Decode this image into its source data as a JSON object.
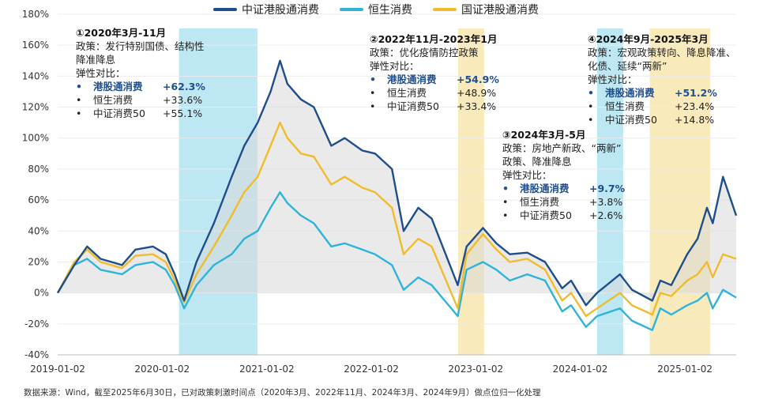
{
  "chart_data": {
    "type": "line",
    "title": "",
    "xlabel": "",
    "ylabel": "",
    "ylim": [
      -40,
      180
    ],
    "y_ticks": [
      -40,
      -20,
      0,
      20,
      40,
      60,
      80,
      100,
      120,
      140,
      160,
      180
    ],
    "y_tick_labels": [
      "-40%",
      "-20%",
      "0%",
      "20%",
      "40%",
      "60%",
      "80%",
      "100%",
      "120%",
      "140%",
      "160%",
      "180%"
    ],
    "xlim": [
      "2019-01-02",
      "2025-06-30"
    ],
    "x_ticks": [
      "2019-01-02",
      "2020-01-02",
      "2021-01-02",
      "2022-01-02",
      "2023-01-02",
      "2024-01-02",
      "2025-01-02"
    ],
    "legend_position": "top-center",
    "series": [
      {
        "name": "中证港股通消费",
        "color": "#1f4e8c",
        "x": [
          "2019-01-02",
          "2019-03-01",
          "2019-04-15",
          "2019-06-01",
          "2019-08-15",
          "2019-10-01",
          "2019-12-01",
          "2020-01-15",
          "2020-02-15",
          "2020-03-19",
          "2020-05-01",
          "2020-07-01",
          "2020-09-01",
          "2020-10-15",
          "2020-12-01",
          "2021-01-15",
          "2021-02-17",
          "2021-03-15",
          "2021-05-01",
          "2021-06-15",
          "2021-08-15",
          "2021-10-01",
          "2021-12-01",
          "2022-01-15",
          "2022-03-15",
          "2022-04-25",
          "2022-06-15",
          "2022-08-01",
          "2022-10-31",
          "2022-12-01",
          "2023-01-27",
          "2023-03-15",
          "2023-05-01",
          "2023-07-01",
          "2023-09-01",
          "2023-10-31",
          "2023-12-01",
          "2024-01-22",
          "2024-03-01",
          "2024-05-20",
          "2024-07-01",
          "2024-09-10",
          "2024-10-08",
          "2024-11-15",
          "2025-01-10",
          "2025-02-15",
          "2025-03-20",
          "2025-04-09",
          "2025-05-15",
          "2025-06-30"
        ],
        "values": [
          0,
          18,
          30,
          22,
          18,
          28,
          30,
          25,
          12,
          -5,
          20,
          45,
          75,
          95,
          110,
          130,
          150,
          135,
          125,
          120,
          95,
          100,
          92,
          90,
          80,
          40,
          55,
          48,
          5,
          30,
          42,
          32,
          25,
          26,
          20,
          3,
          8,
          -8,
          0,
          12,
          2,
          -5,
          8,
          5,
          25,
          35,
          55,
          45,
          75,
          50
        ]
      },
      {
        "name": "恒生消费",
        "color": "#2eb4da",
        "x": [
          "2019-01-02",
          "2019-03-01",
          "2019-04-15",
          "2019-06-01",
          "2019-08-15",
          "2019-10-01",
          "2019-12-01",
          "2020-01-15",
          "2020-02-15",
          "2020-03-19",
          "2020-05-01",
          "2020-07-01",
          "2020-09-01",
          "2020-10-15",
          "2020-12-01",
          "2021-01-15",
          "2021-02-17",
          "2021-03-15",
          "2021-05-01",
          "2021-06-15",
          "2021-08-15",
          "2021-10-01",
          "2021-12-01",
          "2022-01-15",
          "2022-03-15",
          "2022-04-25",
          "2022-06-15",
          "2022-08-01",
          "2022-10-31",
          "2022-12-01",
          "2023-01-27",
          "2023-03-15",
          "2023-05-01",
          "2023-07-01",
          "2023-09-01",
          "2023-10-31",
          "2023-12-01",
          "2024-01-22",
          "2024-03-01",
          "2024-05-20",
          "2024-07-01",
          "2024-09-10",
          "2024-10-08",
          "2024-11-15",
          "2025-01-10",
          "2025-02-15",
          "2025-03-20",
          "2025-04-09",
          "2025-05-15",
          "2025-06-30"
        ],
        "values": [
          0,
          18,
          22,
          15,
          12,
          18,
          20,
          15,
          5,
          -10,
          5,
          18,
          25,
          35,
          40,
          55,
          65,
          58,
          50,
          45,
          30,
          32,
          28,
          25,
          18,
          2,
          10,
          5,
          -15,
          15,
          20,
          15,
          8,
          12,
          8,
          -12,
          -8,
          -22,
          -15,
          -10,
          -18,
          -24,
          -10,
          -14,
          -8,
          -5,
          0,
          -10,
          2,
          -3
        ]
      },
      {
        "name": "国证港股通消费",
        "color": "#f0bc2b",
        "x": [
          "2019-01-02",
          "2019-03-01",
          "2019-04-15",
          "2019-06-01",
          "2019-08-15",
          "2019-10-01",
          "2019-12-01",
          "2020-01-15",
          "2020-02-15",
          "2020-03-19",
          "2020-05-01",
          "2020-07-01",
          "2020-09-01",
          "2020-10-15",
          "2020-12-01",
          "2021-01-15",
          "2021-02-17",
          "2021-03-15",
          "2021-05-01",
          "2021-06-15",
          "2021-08-15",
          "2021-10-01",
          "2021-12-01",
          "2022-01-15",
          "2022-03-15",
          "2022-04-25",
          "2022-06-15",
          "2022-08-01",
          "2022-10-31",
          "2022-12-01",
          "2023-01-27",
          "2023-03-15",
          "2023-05-01",
          "2023-07-01",
          "2023-09-01",
          "2023-10-31",
          "2023-12-01",
          "2024-01-22",
          "2024-03-01",
          "2024-05-20",
          "2024-07-01",
          "2024-09-10",
          "2024-10-08",
          "2024-11-15",
          "2025-01-10",
          "2025-02-15",
          "2025-03-20",
          "2025-04-09",
          "2025-05-15",
          "2025-06-30"
        ],
        "values": [
          0,
          20,
          28,
          20,
          16,
          24,
          25,
          20,
          8,
          -6,
          12,
          30,
          50,
          65,
          75,
          95,
          110,
          100,
          90,
          88,
          70,
          75,
          68,
          65,
          55,
          25,
          35,
          30,
          -10,
          25,
          38,
          28,
          20,
          22,
          15,
          -5,
          0,
          -15,
          -10,
          0,
          -8,
          -14,
          0,
          -2,
          8,
          12,
          20,
          10,
          25,
          22
        ]
      }
    ],
    "shaded_periods": [
      {
        "label": "①",
        "start": "2020-03-01",
        "end": "2020-11-30",
        "color": "#b5e4f2"
      },
      {
        "label": "②",
        "start": "2022-11-01",
        "end": "2023-01-31",
        "color": "#f8e8b5"
      },
      {
        "label": "③",
        "start": "2024-03-01",
        "end": "2024-05-31",
        "color": "#b5e4f2"
      },
      {
        "label": "④",
        "start": "2024-09-01",
        "end": "2025-03-31",
        "color": "#f8e8b5"
      }
    ],
    "annotations": [
      {
        "title": "①2020年3月-11月",
        "policy_lines": [
          "政策：发行特别国债、结构性",
          "降准降息"
        ],
        "elasticity_label": "弹性对比：",
        "items": [
          {
            "bullet": "•",
            "name": "港股通消费",
            "value": "+62.3%",
            "highlight": true
          },
          {
            "bullet": "•",
            "name": "恒生消费",
            "value": "+33.6%",
            "highlight": false
          },
          {
            "bullet": "•",
            "name": "中证消费50",
            "value": "+55.1%",
            "highlight": false
          }
        ]
      },
      {
        "title": "②2022年11月-2023年1月",
        "policy_lines": [
          "政策：优化疫情防控政策"
        ],
        "elasticity_label": "弹性对比：",
        "items": [
          {
            "bullet": "•",
            "name": "港股通消费",
            "value": "+54.9%",
            "highlight": true
          },
          {
            "bullet": "•",
            "name": "恒生消费",
            "value": "+48.9%",
            "highlight": false
          },
          {
            "bullet": "•",
            "name": "中证消费50",
            "value": "+33.4%",
            "highlight": false
          }
        ]
      },
      {
        "title": "③2024年3月-5月",
        "policy_lines": [
          "政策：房地产新政、“两新”",
          "政策、降准降息"
        ],
        "elasticity_label": "弹性对比：",
        "items": [
          {
            "bullet": "•",
            "name": "港股通消费",
            "value": "+9.7%",
            "highlight": true
          },
          {
            "bullet": "•",
            "name": "恒生消费",
            "value": "+3.8%",
            "highlight": false
          },
          {
            "bullet": "•",
            "name": "中证消费50",
            "value": "+2.6%",
            "highlight": false
          }
        ]
      },
      {
        "title": "④2024年9月-2025年3月",
        "policy_lines": [
          "政策：宏观政策转向、降息降准、",
          "化债、延续“两新”"
        ],
        "elasticity_label": "弹性对比：",
        "items": [
          {
            "bullet": "•",
            "name": "港股通消费",
            "value": "+51.2%",
            "highlight": true
          },
          {
            "bullet": "•",
            "name": "恒生消费",
            "value": "+23.4%",
            "highlight": false
          },
          {
            "bullet": "•",
            "name": "中证消费50",
            "value": "+14.8%",
            "highlight": false
          }
        ]
      }
    ]
  },
  "source_note": "数据来源：Wind，截至2025年6月30日，已对政策刺激时间点（2020年3月、2022年11月、2024年3月、2024年9月）做点位归一化处理"
}
